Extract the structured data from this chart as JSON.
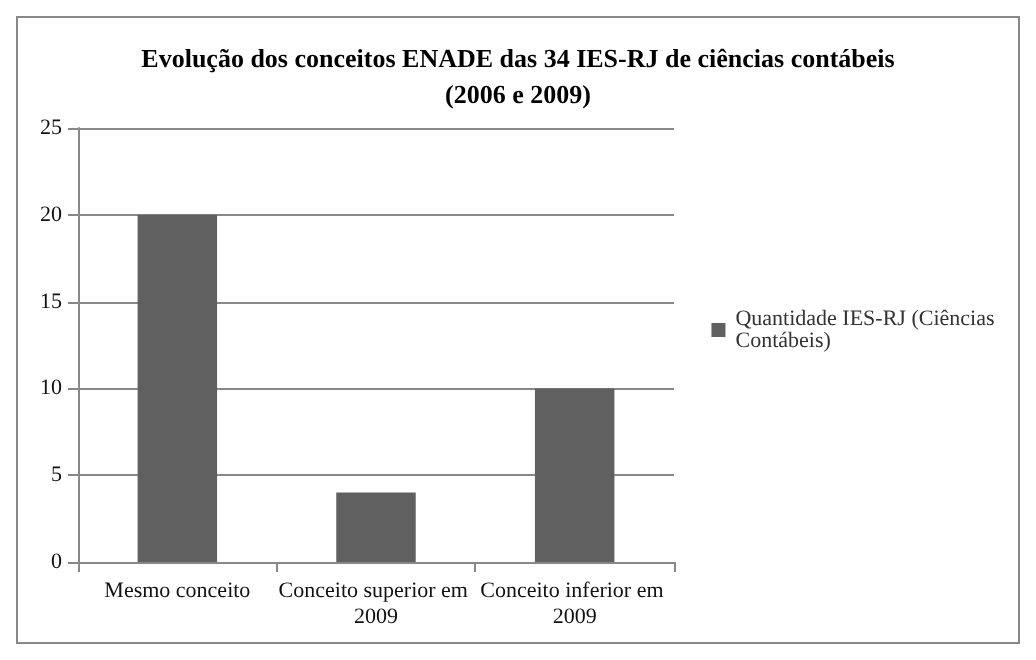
{
  "chart_data": {
    "type": "bar",
    "title": "Evolução dos conceitos ENADE das 34 IES-RJ de ciências contábeis\n(2006 e 2009)",
    "categories": [
      "Mesmo conceito",
      "Conceito superior em 2009",
      "Conceito inferior em 2009"
    ],
    "series": [
      {
        "name": "Quantidade IES-RJ (Ciências Contábeis)",
        "color": "#606060",
        "values": [
          20,
          4,
          10
        ]
      }
    ],
    "ylim": [
      0,
      25
    ],
    "yticks": [
      0,
      5,
      10,
      15,
      20,
      25
    ],
    "grid": "y",
    "legend": "right"
  }
}
